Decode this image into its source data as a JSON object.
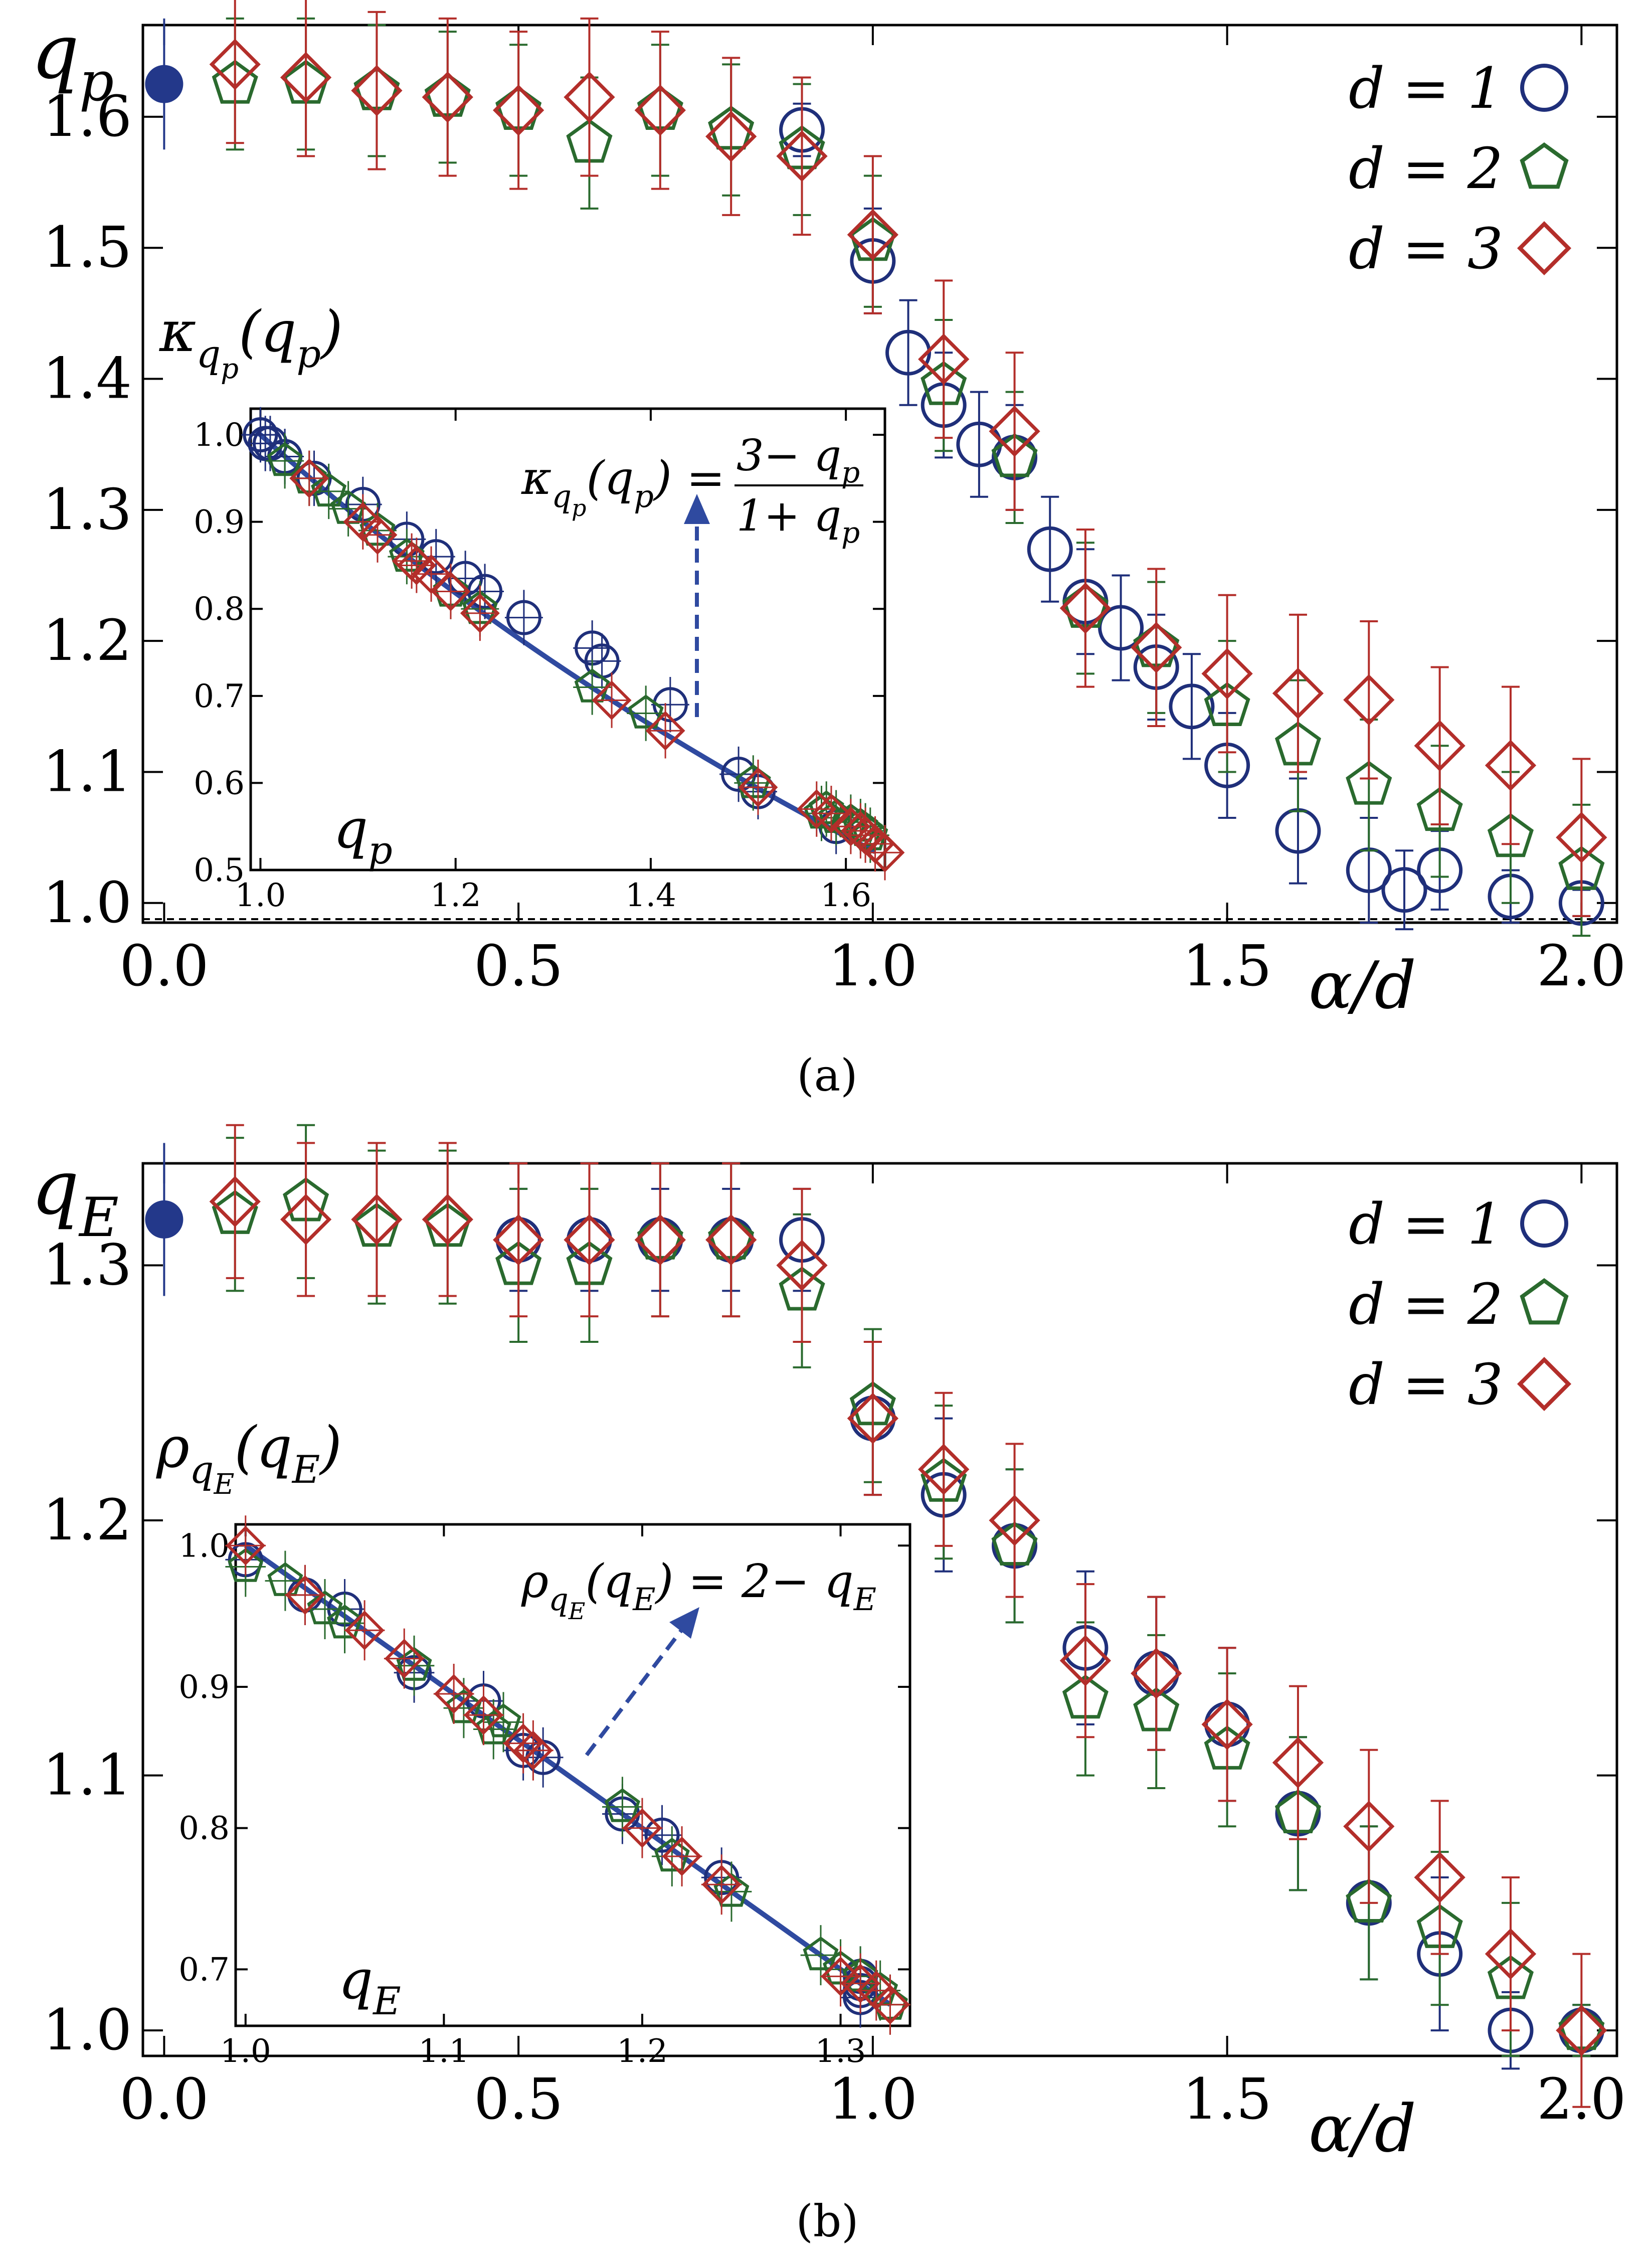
{
  "colors": {
    "d1": "#1f2f7a",
    "d2": "#2a6a2e",
    "d3": "#b32e2a",
    "fit": "#2f4aa0",
    "point": "#23388a"
  },
  "chart_data": [
    {
      "id": "a",
      "type": "scatter",
      "caption": "(a)",
      "ylabel": "q_p",
      "xlabel": "α/d",
      "xlim": [
        -0.03,
        2.05
      ],
      "ylim": [
        0.985,
        1.67
      ],
      "xticks": [
        "0.0",
        "0.5",
        "1.0",
        "1.5",
        "2.0"
      ],
      "yticks": [
        "1.0",
        "1.1",
        "1.2",
        "1.3",
        "1.4",
        "1.5",
        "1.6"
      ],
      "legend": [
        "d = 1",
        "d = 2",
        "d = 3"
      ],
      "legend_position": "top-right",
      "reference_line_y": 1.0,
      "filled_point": {
        "x": 0.0,
        "y": 1.625,
        "err": 0.05
      },
      "series": [
        {
          "name": "d = 1",
          "marker": "circle",
          "x": [
            0.9,
            1.0,
            1.05,
            1.1,
            1.15,
            1.2,
            1.25,
            1.3,
            1.35,
            1.4,
            1.45,
            1.5,
            1.6,
            1.7,
            1.75,
            1.8,
            1.9,
            2.0
          ],
          "y": [
            1.59,
            1.49,
            1.42,
            1.38,
            1.35,
            1.34,
            1.27,
            1.23,
            1.21,
            1.18,
            1.15,
            1.105,
            1.055,
            1.025,
            1.01,
            1.025,
            1.005,
            1.0
          ],
          "err": [
            0.02,
            0.04,
            0.04,
            0.04,
            0.04,
            0.04,
            0.04,
            0.04,
            0.04,
            0.04,
            0.04,
            0.04,
            0.04,
            0.04,
            0.03,
            0.03,
            0.02,
            0.01
          ]
        },
        {
          "name": "d = 2",
          "marker": "pentagon",
          "x": [
            0.1,
            0.2,
            0.3,
            0.4,
            0.5,
            0.6,
            0.7,
            0.8,
            0.9,
            1.0,
            1.1,
            1.2,
            1.3,
            1.4,
            1.5,
            1.6,
            1.7,
            1.8,
            1.9,
            2.0
          ],
          "y": [
            1.625,
            1.625,
            1.62,
            1.615,
            1.605,
            1.58,
            1.605,
            1.59,
            1.575,
            1.505,
            1.395,
            1.34,
            1.225,
            1.195,
            1.15,
            1.12,
            1.09,
            1.07,
            1.05,
            1.025
          ],
          "err": [
            0.05,
            0.05,
            0.05,
            0.05,
            0.05,
            0.05,
            0.05,
            0.05,
            0.05,
            0.05,
            0.05,
            0.05,
            0.05,
            0.05,
            0.05,
            0.05,
            0.05,
            0.05,
            0.05,
            0.05
          ]
        },
        {
          "name": "d = 3",
          "marker": "diamond",
          "x": [
            0.1,
            0.2,
            0.3,
            0.4,
            0.5,
            0.6,
            0.7,
            0.8,
            0.9,
            1.0,
            1.1,
            1.2,
            1.3,
            1.4,
            1.5,
            1.6,
            1.7,
            1.8,
            1.9,
            2.0
          ],
          "y": [
            1.64,
            1.63,
            1.62,
            1.615,
            1.605,
            1.615,
            1.605,
            1.585,
            1.57,
            1.51,
            1.415,
            1.36,
            1.225,
            1.195,
            1.175,
            1.16,
            1.155,
            1.12,
            1.105,
            1.05
          ],
          "err": [
            0.06,
            0.06,
            0.06,
            0.06,
            0.06,
            0.06,
            0.06,
            0.06,
            0.06,
            0.06,
            0.06,
            0.06,
            0.06,
            0.06,
            0.06,
            0.06,
            0.06,
            0.06,
            0.06,
            0.06
          ]
        }
      ],
      "inset": {
        "ylabel": "κ_qp(q_p)",
        "xlabel": "q_p",
        "formula_lhs": "κ_qp(q_p) =",
        "formula_num": "3− q_p",
        "formula_den": "1+ q_p",
        "xlim": [
          0.99,
          1.64
        ],
        "ylim": [
          0.5,
          1.03
        ],
        "xticks": [
          "1.0",
          "1.2",
          "1.4",
          "1.6"
        ],
        "yticks": [
          "0.5",
          "0.6",
          "0.7",
          "0.8",
          "0.9",
          "1.0"
        ],
        "fit": "(3 - q) / (1 + q)",
        "series": [
          {
            "name": "d = 1",
            "x": [
              1.0,
              1.49,
              1.51,
              1.42,
              1.35,
              1.34,
              1.27,
              1.23,
              1.21,
              1.18,
              1.15,
              1.105,
              1.055,
              1.025,
              1.01,
              1.025,
              1.005,
              1.0,
              1.59
            ],
            "y": [
              1.0,
              0.61,
              0.59,
              0.69,
              0.74,
              0.755,
              0.79,
              0.82,
              0.835,
              0.86,
              0.88,
              0.92,
              0.95,
              0.975,
              0.99,
              0.975,
              0.99,
              1.0,
              0.55
            ]
          },
          {
            "name": "d = 2",
            "x": [
              1.625,
              1.62,
              1.615,
              1.605,
              1.58,
              1.59,
              1.575,
              1.505,
              1.395,
              1.34,
              1.225,
              1.195,
              1.15,
              1.12,
              1.09,
              1.07,
              1.05,
              1.025
            ],
            "y": [
              0.54,
              0.545,
              0.55,
              0.555,
              0.57,
              0.56,
              0.565,
              0.6,
              0.68,
              0.71,
              0.8,
              0.82,
              0.86,
              0.89,
              0.915,
              0.935,
              0.95,
              0.97
            ]
          },
          {
            "name": "d = 3",
            "x": [
              1.64,
              1.63,
              1.62,
              1.615,
              1.605,
              1.585,
              1.57,
              1.51,
              1.415,
              1.36,
              1.225,
              1.195,
              1.175,
              1.16,
              1.155,
              1.12,
              1.105,
              1.05
            ],
            "y": [
              0.52,
              0.53,
              0.54,
              0.545,
              0.55,
              0.565,
              0.57,
              0.595,
              0.66,
              0.695,
              0.795,
              0.82,
              0.84,
              0.85,
              0.855,
              0.885,
              0.9,
              0.95
            ]
          }
        ]
      }
    },
    {
      "id": "b",
      "type": "scatter",
      "caption": "(b)",
      "ylabel": "q_E",
      "xlabel": "α/d",
      "xlim": [
        -0.03,
        2.05
      ],
      "ylim": [
        0.99,
        1.34
      ],
      "xticks": [
        "0.0",
        "0.5",
        "1.0",
        "1.5",
        "2.0"
      ],
      "yticks": [
        "1.0",
        "1.1",
        "1.2",
        "1.3"
      ],
      "legend": [
        "d = 1",
        "d = 2",
        "d = 3"
      ],
      "legend_position": "top-right",
      "reference_line_y": 1.0,
      "filled_point": {
        "x": 0.0,
        "y": 1.318,
        "err": 0.03
      },
      "series": [
        {
          "name": "d = 1",
          "marker": "circle",
          "x": [
            0.5,
            0.6,
            0.7,
            0.8,
            0.9,
            1.0,
            1.1,
            1.2,
            1.3,
            1.4,
            1.5,
            1.6,
            1.7,
            1.8,
            1.9,
            2.0
          ],
          "y": [
            1.31,
            1.31,
            1.31,
            1.31,
            1.31,
            1.24,
            1.21,
            1.19,
            1.15,
            1.14,
            1.12,
            1.085,
            1.05,
            1.03,
            1.0,
            1.0
          ],
          "err": [
            0.02,
            0.02,
            0.02,
            0.02,
            0.02,
            0.03,
            0.03,
            0.03,
            0.03,
            0.03,
            0.03,
            0.03,
            0.03,
            0.03,
            0.015,
            0.01
          ]
        },
        {
          "name": "d = 2",
          "marker": "pentagon",
          "x": [
            0.1,
            0.2,
            0.3,
            0.4,
            0.5,
            0.6,
            0.7,
            0.8,
            0.9,
            1.0,
            1.1,
            1.2,
            1.3,
            1.4,
            1.5,
            1.6,
            1.7,
            1.8,
            1.9,
            2.0
          ],
          "y": [
            1.32,
            1.325,
            1.315,
            1.315,
            1.3,
            1.3,
            1.31,
            1.31,
            1.29,
            1.245,
            1.215,
            1.19,
            1.13,
            1.125,
            1.11,
            1.085,
            1.05,
            1.04,
            1.02,
            1.0
          ],
          "err": [
            0.03,
            0.03,
            0.03,
            0.03,
            0.03,
            0.03,
            0.03,
            0.03,
            0.03,
            0.03,
            0.03,
            0.03,
            0.03,
            0.03,
            0.03,
            0.03,
            0.03,
            0.03,
            0.03,
            0.01
          ]
        },
        {
          "name": "d = 3",
          "marker": "diamond",
          "x": [
            0.1,
            0.2,
            0.3,
            0.4,
            0.5,
            0.6,
            0.7,
            0.8,
            0.9,
            1.0,
            1.1,
            1.2,
            1.3,
            1.4,
            1.5,
            1.6,
            1.7,
            1.8,
            1.9,
            2.0
          ],
          "y": [
            1.325,
            1.318,
            1.318,
            1.318,
            1.31,
            1.31,
            1.31,
            1.31,
            1.3,
            1.24,
            1.22,
            1.2,
            1.145,
            1.14,
            1.12,
            1.105,
            1.08,
            1.06,
            1.03,
            1.0
          ],
          "err": [
            0.03,
            0.03,
            0.03,
            0.03,
            0.03,
            0.03,
            0.03,
            0.03,
            0.03,
            0.03,
            0.03,
            0.03,
            0.03,
            0.03,
            0.03,
            0.03,
            0.03,
            0.03,
            0.03,
            0.03
          ]
        }
      ],
      "inset": {
        "ylabel": "ρ_qE(q_E)",
        "xlabel": "q_E",
        "formula_lhs": "ρ_qE(q_E) = 2− q_E",
        "xlim": [
          0.995,
          1.335
        ],
        "ylim": [
          0.66,
          1.015
        ],
        "xticks": [
          "1.0",
          "1.1",
          "1.2",
          "1.3"
        ],
        "yticks": [
          "0.7",
          "0.8",
          "0.9",
          "1.0"
        ],
        "fit": "2 - q",
        "series": [
          {
            "name": "d = 1",
            "x": [
              1.0,
              1.03,
              1.05,
              1.085,
              1.12,
              1.14,
              1.15,
              1.19,
              1.21,
              1.24,
              1.31,
              1.31,
              1.31,
              1.31
            ],
            "y": [
              0.99,
              0.965,
              0.955,
              0.91,
              0.89,
              0.855,
              0.85,
              0.81,
              0.795,
              0.765,
              0.695,
              0.69,
              0.685,
              0.68
            ]
          },
          {
            "name": "d = 2",
            "x": [
              1.0,
              1.02,
              1.04,
              1.05,
              1.085,
              1.11,
              1.125,
              1.13,
              1.19,
              1.215,
              1.245,
              1.29,
              1.3,
              1.31,
              1.32,
              1.325
            ],
            "y": [
              0.985,
              0.975,
              0.955,
              0.945,
              0.915,
              0.885,
              0.87,
              0.875,
              0.815,
              0.78,
              0.755,
              0.71,
              0.7,
              0.695,
              0.685,
              0.675
            ]
          },
          {
            "name": "d = 3",
            "x": [
              1.0,
              1.03,
              1.06,
              1.08,
              1.105,
              1.12,
              1.14,
              1.145,
              1.2,
              1.22,
              1.24,
              1.3,
              1.31,
              1.318,
              1.325
            ],
            "y": [
              1.0,
              0.965,
              0.94,
              0.92,
              0.895,
              0.88,
              0.86,
              0.855,
              0.8,
              0.78,
              0.76,
              0.695,
              0.69,
              0.685,
              0.675
            ]
          }
        ]
      }
    }
  ]
}
